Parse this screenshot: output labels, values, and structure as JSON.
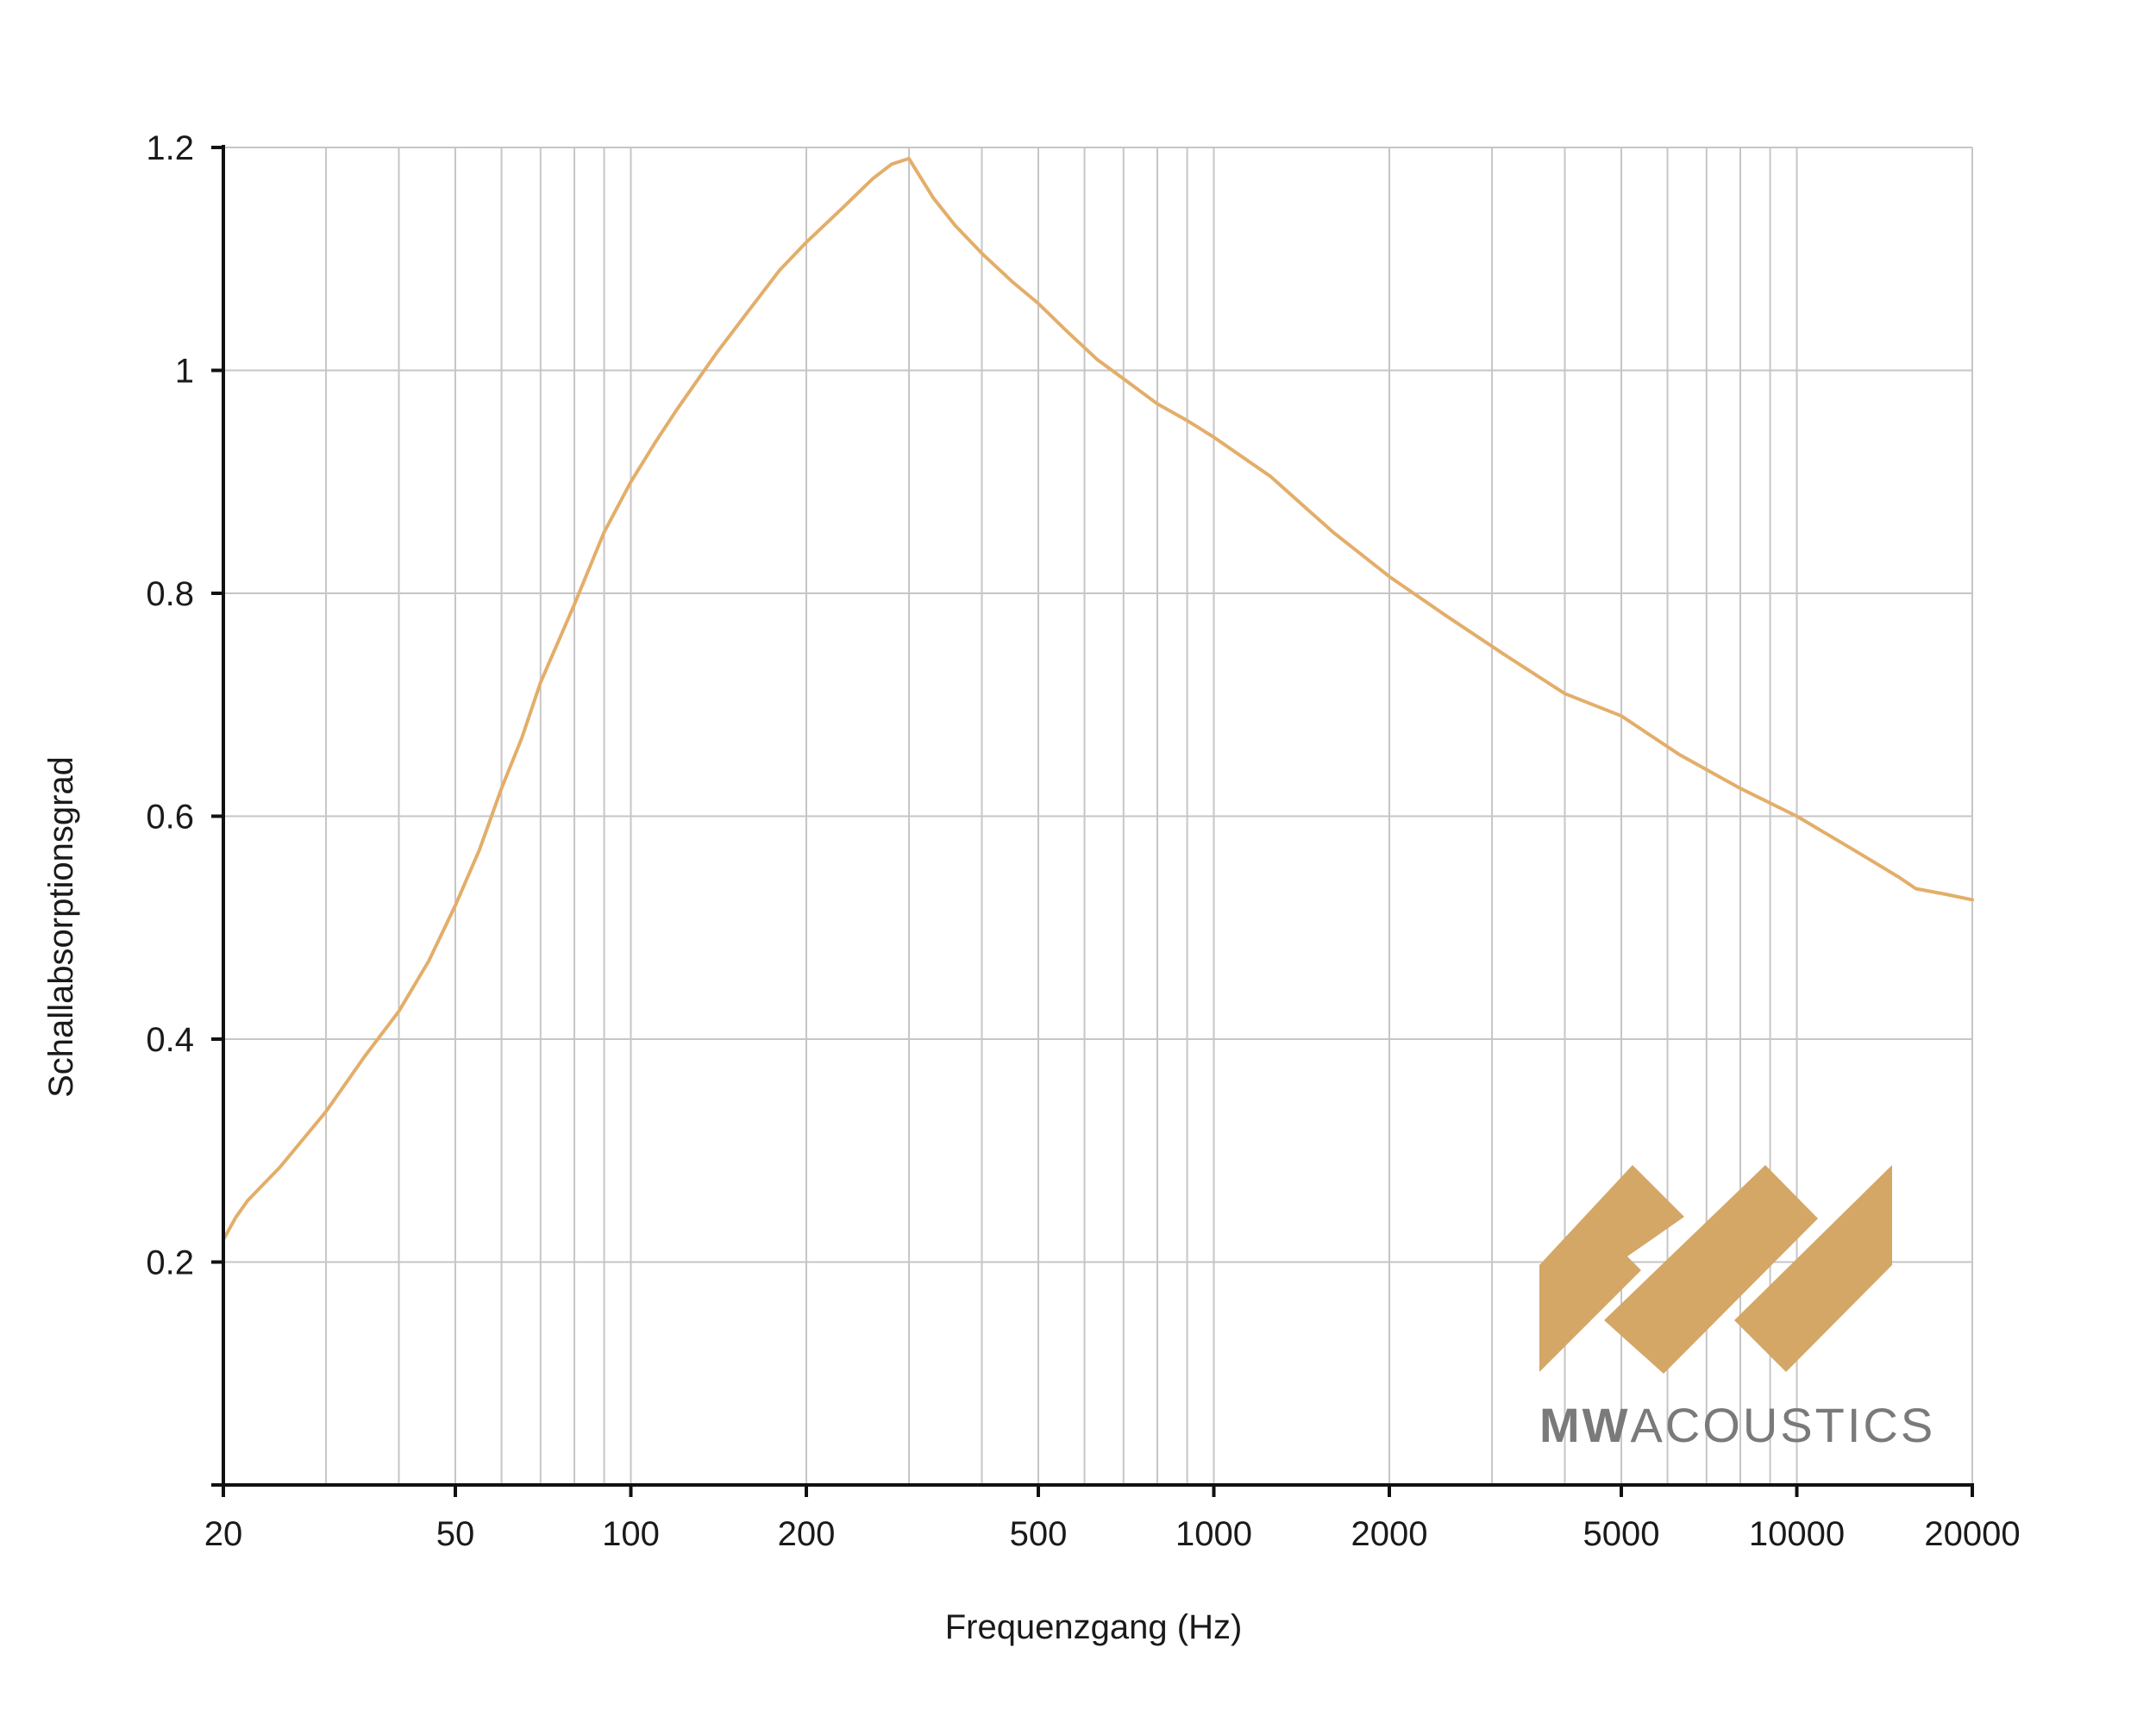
{
  "chart_data": {
    "type": "line",
    "title": "",
    "xlabel": "Frequenzgang (Hz)",
    "ylabel": "Schallabsorptionsgrad",
    "x_scale": "log",
    "xlim": [
      20,
      20000
    ],
    "ylim": [
      0,
      1.2
    ],
    "x_ticks": [
      20,
      50,
      100,
      200,
      500,
      1000,
      2000,
      5000,
      10000,
      20000
    ],
    "x_tick_labels": [
      "20",
      "50",
      "100",
      "200",
      "500",
      "1000",
      "2000",
      "5000",
      "10000",
      "20000"
    ],
    "y_ticks": [
      0.2,
      0.4,
      0.6,
      0.8,
      1.0,
      1.2
    ],
    "y_tick_labels": [
      "0.2",
      "0.4",
      "0.6",
      "0.8",
      "1",
      "1.2"
    ],
    "grid": true,
    "legend": "none",
    "series": [
      {
        "color": "#E3AE6A",
        "x": [
          20,
          21,
          22,
          25,
          30,
          35,
          40,
          45,
          50,
          55,
          60,
          65,
          70,
          80,
          90,
          100,
          110,
          120,
          140,
          160,
          180,
          200,
          230,
          260,
          280,
          300,
          330,
          360,
          400,
          450,
          500,
          560,
          630,
          710,
          800,
          900,
          1000,
          1250,
          1600,
          2000,
          2500,
          3150,
          4000,
          5000,
          6300,
          8000,
          10000,
          12500,
          15000,
          16000,
          18000,
          20000
        ],
        "y": [
          0.22,
          0.24,
          0.255,
          0.285,
          0.335,
          0.385,
          0.425,
          0.47,
          0.52,
          0.57,
          0.625,
          0.67,
          0.72,
          0.79,
          0.855,
          0.9,
          0.935,
          0.965,
          1.015,
          1.055,
          1.09,
          1.115,
          1.145,
          1.172,
          1.185,
          1.19,
          1.155,
          1.13,
          1.105,
          1.08,
          1.06,
          1.035,
          1.01,
          0.99,
          0.97,
          0.955,
          0.94,
          0.905,
          0.855,
          0.815,
          0.78,
          0.745,
          0.71,
          0.69,
          0.655,
          0.625,
          0.6,
          0.57,
          0.545,
          0.535,
          0.53,
          0.525
        ]
      }
    ]
  },
  "logo": {
    "text_bold": "MW",
    "text_light": "ACOUSTICS",
    "mark_color": "#D4A766",
    "text_color": "#7A7A7A"
  }
}
